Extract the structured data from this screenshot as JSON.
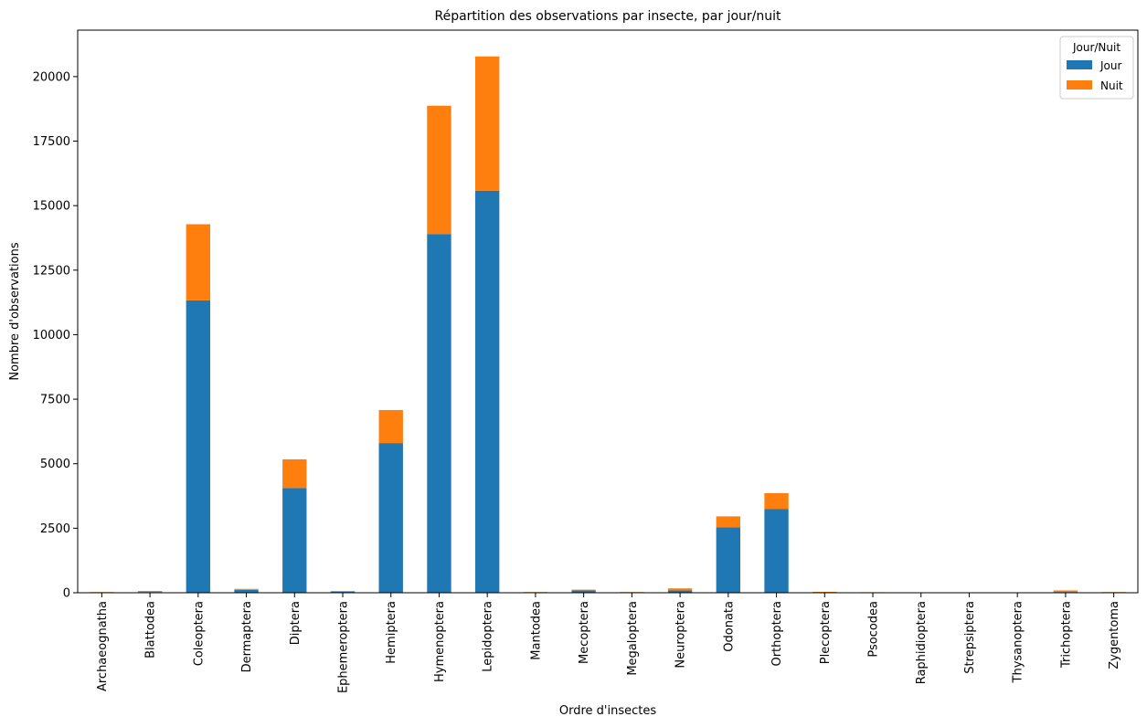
{
  "chart_data": {
    "type": "bar",
    "stacked": true,
    "title": "Répartition des observations par insecte, par jour/nuit",
    "xlabel": "Ordre d'insectes",
    "ylabel": "Nombre d'observations",
    "ylim": [
      0,
      21800
    ],
    "yticks": [
      0,
      2500,
      5000,
      7500,
      10000,
      12500,
      15000,
      17500,
      20000
    ],
    "grid": false,
    "legend": {
      "title": "Jour/Nuit",
      "placement": "top-right"
    },
    "categories": [
      "Archaeognatha",
      "Blattodea",
      "Coleoptera",
      "Dermaptera",
      "Diptera",
      "Ephemeroptera",
      "Hemiptera",
      "Hymenoptera",
      "Lepidoptera",
      "Mantodea",
      "Mecoptera",
      "Megaloptera",
      "Neuroptera",
      "Odonata",
      "Orthoptera",
      "Plecoptera",
      "Psocodea",
      "Raphidioptera",
      "Strepsiptera",
      "Thysanoptera",
      "Trichoptera",
      "Zygentoma"
    ],
    "series": [
      {
        "name": "Jour",
        "color": "#1f77b4",
        "values": [
          20,
          30,
          11330,
          110,
          4060,
          40,
          5800,
          13900,
          15580,
          20,
          90,
          20,
          90,
          2540,
          3250,
          15,
          15,
          10,
          2,
          2,
          30,
          20
        ]
      },
      {
        "name": "Nuit",
        "color": "#ff7f0e",
        "values": [
          5,
          40,
          2950,
          40,
          1110,
          30,
          1280,
          4970,
          5200,
          5,
          30,
          5,
          80,
          420,
          610,
          20,
          5,
          5,
          0,
          0,
          60,
          5
        ]
      }
    ]
  }
}
